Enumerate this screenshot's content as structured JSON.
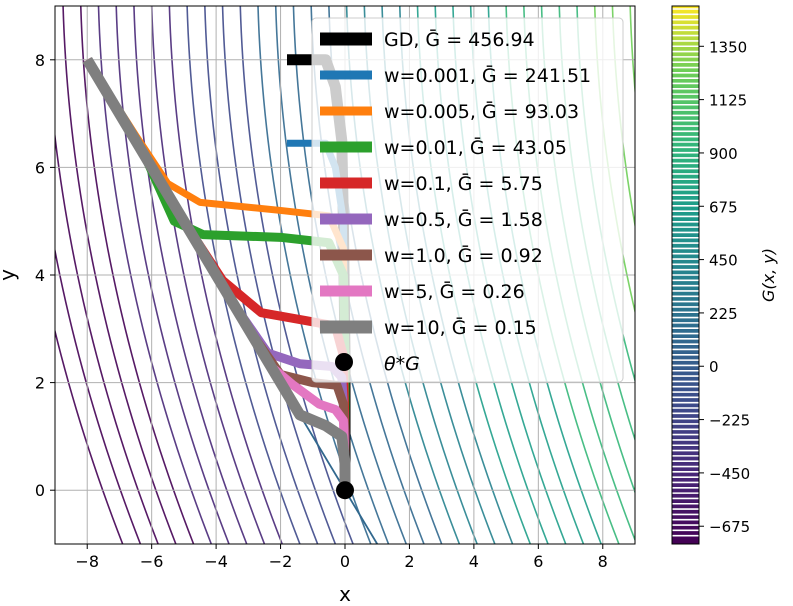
{
  "chart_data": {
    "type": "line",
    "title": "",
    "xlabel": "x",
    "ylabel": "y",
    "xlim": [
      -9,
      9
    ],
    "ylim": [
      -1,
      9
    ],
    "grid": true,
    "x_ticks": [
      -8,
      -6,
      -4,
      -2,
      0,
      2,
      4,
      6,
      8
    ],
    "y_ticks": [
      0,
      2,
      4,
      6,
      8
    ],
    "background": "contour",
    "colorbar": {
      "label": "G(x, y)",
      "colormap": "viridis",
      "range": [
        -750,
        1520
      ],
      "ticks": [
        -675,
        -450,
        -225,
        0,
        225,
        450,
        675,
        900,
        1125,
        1350
      ],
      "tick_labels": [
        "−675",
        "−450",
        "−225",
        "0",
        "225",
        "450",
        "675",
        "900",
        "1125",
        "1350"
      ]
    },
    "legend_position": "top-right",
    "series": [
      {
        "name": "GD",
        "label": "GD, Ḡ = 456.94",
        "color": "#000000",
        "width": 11,
        "points": [
          [
            -1.8,
            8.0
          ],
          [
            -0.6,
            8.0
          ],
          [
            -0.3,
            7.5
          ],
          [
            -0.1,
            6.5
          ],
          [
            -0.05,
            5.0
          ],
          [
            0.0,
            2.5
          ],
          [
            0.0,
            0.0
          ]
        ]
      },
      {
        "name": "w=0.001",
        "label": "w=0.001, Ḡ = 241.51",
        "color": "#1f77b4",
        "width": 7,
        "points": [
          [
            -1.8,
            6.45
          ],
          [
            -0.6,
            6.45
          ],
          [
            -0.3,
            6.0
          ],
          [
            -0.05,
            5.0
          ],
          [
            0.0,
            2.5
          ],
          [
            0.0,
            0.0
          ]
        ]
      },
      {
        "name": "w=0.005",
        "label": "w=0.005, Ḡ = 93.03",
        "color": "#ff7f0e",
        "width": 7,
        "points": [
          [
            -8.0,
            8.0
          ],
          [
            -6.5,
            6.6
          ],
          [
            -5.5,
            5.7
          ],
          [
            -4.5,
            5.35
          ],
          [
            -2.0,
            5.2
          ],
          [
            -0.5,
            5.1
          ],
          [
            -0.05,
            4.5
          ],
          [
            0.0,
            2.5
          ],
          [
            0.0,
            0.0
          ]
        ]
      },
      {
        "name": "w=0.01",
        "label": "w=0.01, Ḡ = 43.05",
        "color": "#2ca02c",
        "width": 9,
        "points": [
          [
            -8.0,
            8.0
          ],
          [
            -6.2,
            6.2
          ],
          [
            -5.3,
            5.0
          ],
          [
            -4.4,
            4.75
          ],
          [
            -2.0,
            4.7
          ],
          [
            -0.5,
            4.6
          ],
          [
            -0.05,
            4.0
          ],
          [
            0.0,
            2.5
          ],
          [
            0.0,
            0.0
          ]
        ]
      },
      {
        "name": "w=0.1",
        "label": "w=0.1, Ḡ = 5.75",
        "color": "#d62728",
        "width": 9,
        "points": [
          [
            -8.0,
            8.0
          ],
          [
            -5.0,
            5.0
          ],
          [
            -3.8,
            3.9
          ],
          [
            -2.6,
            3.3
          ],
          [
            -1.2,
            3.15
          ],
          [
            -0.3,
            3.05
          ],
          [
            -0.05,
            2.5
          ],
          [
            0.0,
            1.0
          ],
          [
            0.0,
            0.0
          ]
        ]
      },
      {
        "name": "w=0.5",
        "label": "w=0.5, Ḡ = 1.58",
        "color": "#9467bd",
        "width": 9,
        "points": [
          [
            -8.0,
            8.0
          ],
          [
            -3.5,
            3.5
          ],
          [
            -2.4,
            2.55
          ],
          [
            -1.4,
            2.35
          ],
          [
            -0.4,
            2.3
          ],
          [
            -0.1,
            2.1
          ],
          [
            0.0,
            1.0
          ],
          [
            0.0,
            0.0
          ]
        ]
      },
      {
        "name": "w=1.0",
        "label": "w=1.0, Ḡ = 0.92",
        "color": "#8c564b",
        "width": 9,
        "points": [
          [
            -8.0,
            8.0
          ],
          [
            -3.0,
            3.0
          ],
          [
            -2.0,
            2.15
          ],
          [
            -1.0,
            2.0
          ],
          [
            -0.25,
            1.95
          ],
          [
            -0.05,
            1.6
          ],
          [
            0.0,
            0.8
          ],
          [
            0.0,
            0.0
          ]
        ]
      },
      {
        "name": "w=5",
        "label": "w=5, Ḡ = 0.26",
        "color": "#e377c2",
        "width": 9,
        "points": [
          [
            -8.0,
            8.0
          ],
          [
            -2.3,
            2.3
          ],
          [
            -1.6,
            1.95
          ],
          [
            -0.8,
            1.6
          ],
          [
            -0.3,
            1.5
          ],
          [
            -0.05,
            1.3
          ],
          [
            0.0,
            0.5
          ],
          [
            0.0,
            0.0
          ]
        ]
      },
      {
        "name": "w=10",
        "label": "w=10, Ḡ = 0.15",
        "color": "#7f7f7f",
        "width": 11,
        "points": [
          [
            -8.0,
            8.0
          ],
          [
            -1.4,
            1.4
          ],
          [
            -0.6,
            1.2
          ],
          [
            -0.1,
            1.0
          ],
          [
            0.0,
            0.5
          ],
          [
            0.0,
            0.0
          ]
        ]
      }
    ],
    "optimum": {
      "label": "θ*G",
      "x": 0,
      "y": 0
    },
    "legend_marker_label": "θ*G",
    "contour_line": {
      "name": "y = -x",
      "color": "#31688e",
      "x_from": -8,
      "x_to": 1.1
    }
  }
}
